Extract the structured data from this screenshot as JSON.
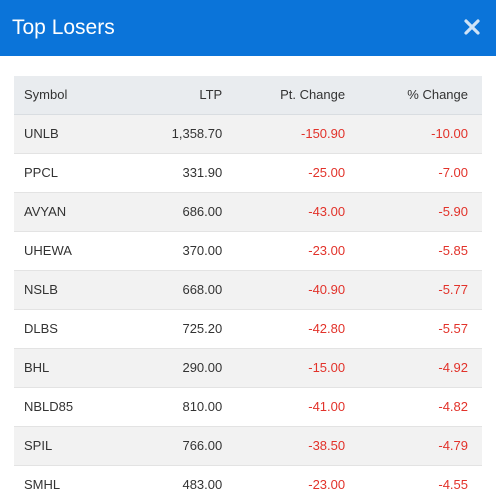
{
  "modal": {
    "title": "Top Losers",
    "close_icon": "close-icon"
  },
  "colors": {
    "header_bg": "#0b74d9",
    "negative": "#e2322a"
  },
  "table": {
    "headers": {
      "symbol": "Symbol",
      "ltp": "LTP",
      "pt_change": "Pt. Change",
      "pct_change": "% Change"
    },
    "rows": [
      {
        "symbol": "UNLB",
        "ltp": "1,358.70",
        "pt_change": "-150.90",
        "pct_change": "-10.00"
      },
      {
        "symbol": "PPCL",
        "ltp": "331.90",
        "pt_change": "-25.00",
        "pct_change": "-7.00"
      },
      {
        "symbol": "AVYAN",
        "ltp": "686.00",
        "pt_change": "-43.00",
        "pct_change": "-5.90"
      },
      {
        "symbol": "UHEWA",
        "ltp": "370.00",
        "pt_change": "-23.00",
        "pct_change": "-5.85"
      },
      {
        "symbol": "NSLB",
        "ltp": "668.00",
        "pt_change": "-40.90",
        "pct_change": "-5.77"
      },
      {
        "symbol": "DLBS",
        "ltp": "725.20",
        "pt_change": "-42.80",
        "pct_change": "-5.57"
      },
      {
        "symbol": "BHL",
        "ltp": "290.00",
        "pt_change": "-15.00",
        "pct_change": "-4.92"
      },
      {
        "symbol": "NBLD85",
        "ltp": "810.00",
        "pt_change": "-41.00",
        "pct_change": "-4.82"
      },
      {
        "symbol": "SPIL",
        "ltp": "766.00",
        "pt_change": "-38.50",
        "pct_change": "-4.79"
      },
      {
        "symbol": "SMHL",
        "ltp": "483.00",
        "pt_change": "-23.00",
        "pct_change": "-4.55"
      }
    ]
  }
}
